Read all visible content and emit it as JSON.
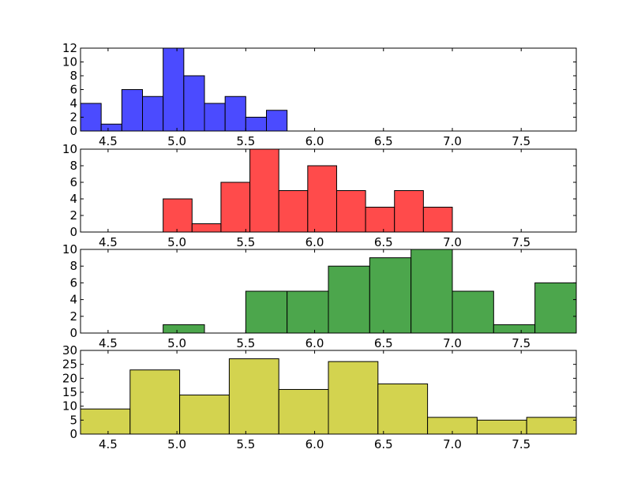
{
  "chart_data": [
    {
      "type": "bar",
      "title": "",
      "xlabel": "",
      "ylabel": "",
      "color": "#4b4bff",
      "xlim": [
        4.3,
        7.9
      ],
      "ylim": [
        0,
        12
      ],
      "xticks": [
        "4.5",
        "5.0",
        "5.5",
        "6.0",
        "6.5",
        "7.0",
        "7.5"
      ],
      "yticks": [
        "0",
        "2",
        "4",
        "6",
        "8",
        "10",
        "12"
      ],
      "bins": [
        {
          "x0": 4.3,
          "x1": 4.45,
          "value": 4
        },
        {
          "x0": 4.45,
          "x1": 4.6,
          "value": 1
        },
        {
          "x0": 4.6,
          "x1": 4.75,
          "value": 6
        },
        {
          "x0": 4.75,
          "x1": 4.9,
          "value": 5
        },
        {
          "x0": 4.9,
          "x1": 5.05,
          "value": 12
        },
        {
          "x0": 5.05,
          "x1": 5.2,
          "value": 8
        },
        {
          "x0": 5.2,
          "x1": 5.35,
          "value": 4
        },
        {
          "x0": 5.35,
          "x1": 5.5,
          "value": 5
        },
        {
          "x0": 5.5,
          "x1": 5.65,
          "value": 2
        },
        {
          "x0": 5.65,
          "x1": 5.8,
          "value": 3
        }
      ]
    },
    {
      "type": "bar",
      "title": "",
      "xlabel": "",
      "ylabel": "",
      "color": "#ff4b4b",
      "xlim": [
        4.3,
        7.9
      ],
      "ylim": [
        0,
        10
      ],
      "xticks": [
        "4.5",
        "5.0",
        "5.5",
        "6.0",
        "6.5",
        "7.0",
        "7.5"
      ],
      "yticks": [
        "0",
        "2",
        "4",
        "6",
        "8",
        "10"
      ],
      "bins": [
        {
          "x0": 4.9,
          "x1": 5.11,
          "value": 4
        },
        {
          "x0": 5.11,
          "x1": 5.32,
          "value": 1
        },
        {
          "x0": 5.32,
          "x1": 5.53,
          "value": 6
        },
        {
          "x0": 5.53,
          "x1": 5.74,
          "value": 10
        },
        {
          "x0": 5.74,
          "x1": 5.95,
          "value": 5
        },
        {
          "x0": 5.95,
          "x1": 6.16,
          "value": 8
        },
        {
          "x0": 6.16,
          "x1": 6.37,
          "value": 5
        },
        {
          "x0": 6.37,
          "x1": 6.58,
          "value": 3
        },
        {
          "x0": 6.58,
          "x1": 6.79,
          "value": 5
        },
        {
          "x0": 6.79,
          "x1": 7.0,
          "value": 3
        }
      ]
    },
    {
      "type": "bar",
      "title": "",
      "xlabel": "",
      "ylabel": "",
      "color": "#4ca64c",
      "xlim": [
        4.3,
        7.9
      ],
      "ylim": [
        0,
        10
      ],
      "xticks": [
        "4.5",
        "5.0",
        "5.5",
        "6.0",
        "6.5",
        "7.0",
        "7.5"
      ],
      "yticks": [
        "0",
        "2",
        "4",
        "6",
        "8",
        "10"
      ],
      "bins": [
        {
          "x0": 4.9,
          "x1": 5.2,
          "value": 1
        },
        {
          "x0": 5.2,
          "x1": 5.5,
          "value": 0
        },
        {
          "x0": 5.5,
          "x1": 5.8,
          "value": 5
        },
        {
          "x0": 5.8,
          "x1": 6.1,
          "value": 5
        },
        {
          "x0": 6.1,
          "x1": 6.4,
          "value": 8
        },
        {
          "x0": 6.4,
          "x1": 6.7,
          "value": 9
        },
        {
          "x0": 6.7,
          "x1": 7.0,
          "value": 10
        },
        {
          "x0": 7.0,
          "x1": 7.3,
          "value": 5
        },
        {
          "x0": 7.3,
          "x1": 7.6,
          "value": 1
        },
        {
          "x0": 7.6,
          "x1": 7.9,
          "value": 6
        }
      ]
    },
    {
      "type": "bar",
      "title": "",
      "xlabel": "",
      "ylabel": "",
      "color": "#d3d34f",
      "xlim": [
        4.3,
        7.9
      ],
      "ylim": [
        0,
        30
      ],
      "xticks": [
        "4.5",
        "5.0",
        "5.5",
        "6.0",
        "6.5",
        "7.0",
        "7.5"
      ],
      "yticks": [
        "0",
        "5",
        "10",
        "15",
        "20",
        "25",
        "30"
      ],
      "bins": [
        {
          "x0": 4.3,
          "x1": 4.66,
          "value": 9
        },
        {
          "x0": 4.66,
          "x1": 5.02,
          "value": 23
        },
        {
          "x0": 5.02,
          "x1": 5.38,
          "value": 14
        },
        {
          "x0": 5.38,
          "x1": 5.74,
          "value": 27
        },
        {
          "x0": 5.74,
          "x1": 6.1,
          "value": 16
        },
        {
          "x0": 6.1,
          "x1": 6.46,
          "value": 26
        },
        {
          "x0": 6.46,
          "x1": 6.82,
          "value": 18
        },
        {
          "x0": 6.82,
          "x1": 7.18,
          "value": 6
        },
        {
          "x0": 7.18,
          "x1": 7.54,
          "value": 5
        },
        {
          "x0": 7.54,
          "x1": 7.9,
          "value": 6
        }
      ]
    }
  ]
}
